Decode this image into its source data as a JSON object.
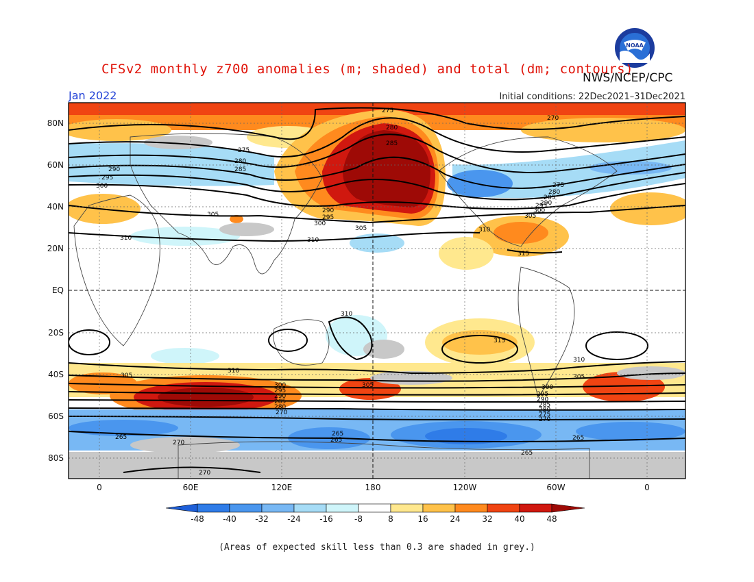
{
  "title": "CFSv2 monthly z700 anomalies (m; shaded) and total (dm; contours)",
  "agency": "NWS/NCEP/CPC",
  "logo_text": "NOAA",
  "month": "Jan 2022",
  "initial_conditions": "Initial conditions: 22Dec2021–31Dec2021",
  "footnote": "(Areas of expected skill less than 0.3 are shaded in grey.)",
  "lat_labels": [
    "80N",
    "60N",
    "40N",
    "20N",
    "EQ",
    "20S",
    "40S",
    "60S",
    "80S"
  ],
  "lon_labels": [
    "0",
    "60E",
    "120E",
    "180",
    "120W",
    "60W",
    "0"
  ],
  "colorbar": {
    "ticks": [
      "-48",
      "-40",
      "-32",
      "-24",
      "-16",
      "-8",
      "8",
      "16",
      "24",
      "32",
      "40",
      "48"
    ],
    "colors": [
      "#1e5fd8",
      "#2f7ce8",
      "#4a96ee",
      "#78b8f4",
      "#a6dcf6",
      "#cff5fa",
      "#ffffff",
      "#ffe88e",
      "#ffc24a",
      "#ff8a1e",
      "#f04412",
      "#d0180f",
      "#9e0a06"
    ]
  },
  "contour_labels": [
    "275",
    "280",
    "285",
    "290",
    "295",
    "300",
    "305",
    "310",
    "315",
    "270",
    "265"
  ],
  "colors": {
    "title": "#e0140a",
    "month": "#1f3fd6",
    "skill_grey": "#c8c8c8"
  }
}
